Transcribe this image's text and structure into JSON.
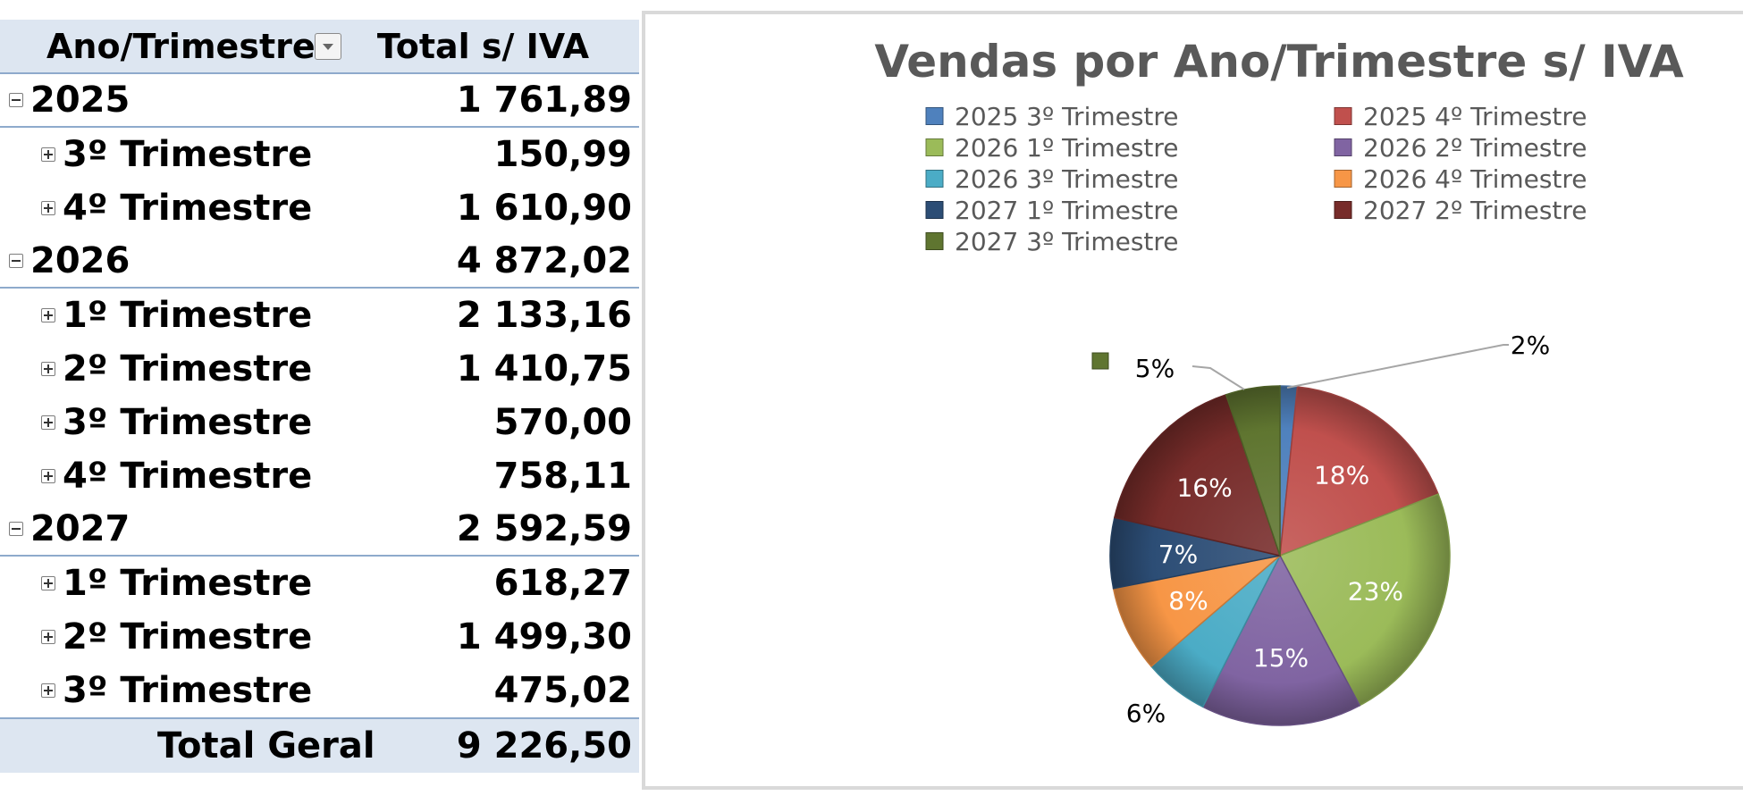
{
  "pivot": {
    "header": {
      "row_label": "Ano/Trimestre",
      "value_label": "Total s/ IVA"
    },
    "rows": [
      {
        "level": "year",
        "label": "2025",
        "value": "1 761,89"
      },
      {
        "level": "quarter",
        "label": "3º Trimestre",
        "value": "150,99"
      },
      {
        "level": "quarter",
        "label": "4º Trimestre",
        "value": "1 610,90"
      },
      {
        "level": "year",
        "label": "2026",
        "value": "4 872,02"
      },
      {
        "level": "quarter",
        "label": "1º Trimestre",
        "value": "2 133,16"
      },
      {
        "level": "quarter",
        "label": "2º Trimestre",
        "value": "1 410,75"
      },
      {
        "level": "quarter",
        "label": "3º Trimestre",
        "value": "570,00"
      },
      {
        "level": "quarter",
        "label": "4º Trimestre",
        "value": "758,11"
      },
      {
        "level": "year",
        "label": "2027",
        "value": "2 592,59"
      },
      {
        "level": "quarter",
        "label": "1º Trimestre",
        "value": "618,27"
      },
      {
        "level": "quarter",
        "label": "2º Trimestre",
        "value": "1 499,30"
      },
      {
        "level": "quarter",
        "label": "3º Trimestre",
        "value": "475,02"
      }
    ],
    "total": {
      "label": "Total Geral",
      "value": "9 226,50"
    }
  },
  "chart_data": {
    "type": "pie",
    "title": "Vendas por Ano/Trimestre s/ IVA",
    "legend_position": "top",
    "slices": [
      {
        "name": "2025 3º Trimestre",
        "value": 150.99,
        "label": "2%",
        "color": "#4f81bd"
      },
      {
        "name": "2025 4º Trimestre",
        "value": 1610.9,
        "label": "18%",
        "color": "#c0504d"
      },
      {
        "name": "2026 1º Trimestre",
        "value": 2133.16,
        "label": "23%",
        "color": "#9bbb59"
      },
      {
        "name": "2026 2º Trimestre",
        "value": 1410.75,
        "label": "15%",
        "color": "#8064a2"
      },
      {
        "name": "2026 3º Trimestre",
        "value": 570.0,
        "label": "6%",
        "color": "#4bacc6"
      },
      {
        "name": "2026 4º Trimestre",
        "value": 758.11,
        "label": "8%",
        "color": "#f79646"
      },
      {
        "name": "2027 1º Trimestre",
        "value": 618.27,
        "label": "7%",
        "color": "#2c4d75"
      },
      {
        "name": "2027 2º Trimestre",
        "value": 1499.3,
        "label": "16%",
        "color": "#772c2a"
      },
      {
        "name": "2027 3º Trimestre",
        "value": 475.02,
        "label": "5%",
        "color": "#5f7530"
      }
    ]
  }
}
